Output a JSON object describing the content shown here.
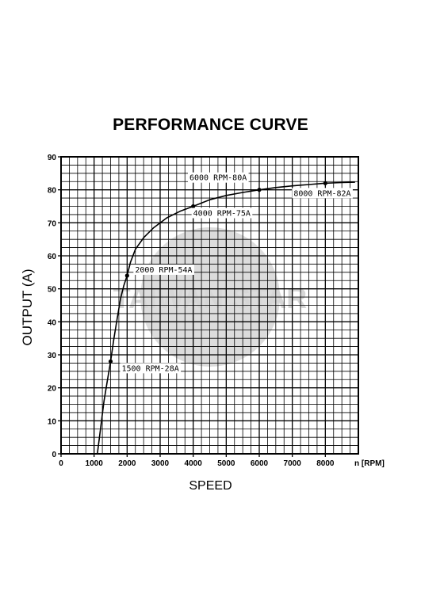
{
  "chart_data": {
    "type": "line",
    "title": "PERFORMANCE CURVE",
    "xlabel": "SPEED",
    "ylabel": "OUTPUT (A)",
    "x_unit_label": "n [RPM]",
    "xlim": [
      0,
      9000
    ],
    "ylim": [
      0,
      90
    ],
    "x_ticks": [
      0,
      1000,
      2000,
      3000,
      4000,
      5000,
      6000,
      7000,
      8000
    ],
    "y_ticks": [
      0,
      10,
      20,
      30,
      40,
      50,
      60,
      70,
      80,
      90
    ],
    "grid": true,
    "series": [
      {
        "x": [
          1100,
          1200,
          1300,
          1400,
          1500,
          1600,
          1700,
          1800,
          1900,
          2000,
          2100,
          2250,
          2500,
          2800,
          3200,
          3600,
          4000,
          4500,
          5000,
          5500,
          6000,
          6500,
          7000,
          7500,
          8000,
          8500,
          8900
        ],
        "y": [
          0,
          8,
          16,
          22,
          28,
          35,
          41,
          47,
          51,
          54,
          58,
          62,
          65.5,
          68.5,
          71.5,
          73.5,
          75,
          77,
          78.3,
          79.2,
          80,
          80.7,
          81.2,
          81.6,
          82,
          82.2,
          82.3
        ]
      }
    ],
    "annotations": [
      {
        "label": "1500 RPM-28A",
        "x": 1500,
        "y": 28
      },
      {
        "label": "2000 RPM-54A",
        "x": 2000,
        "y": 54
      },
      {
        "label": "4000 RPM-75A",
        "x": 4000,
        "y": 75
      },
      {
        "label": "6000 RPM-80A",
        "x": 6000,
        "y": 80
      },
      {
        "label": "8000 RPM-82A",
        "x": 8000,
        "y": 82
      }
    ]
  },
  "watermark": "TAIWAN STAR",
  "colors": {
    "line": "#000000",
    "grid": "#000000",
    "watermark": "#d9d9d9"
  }
}
